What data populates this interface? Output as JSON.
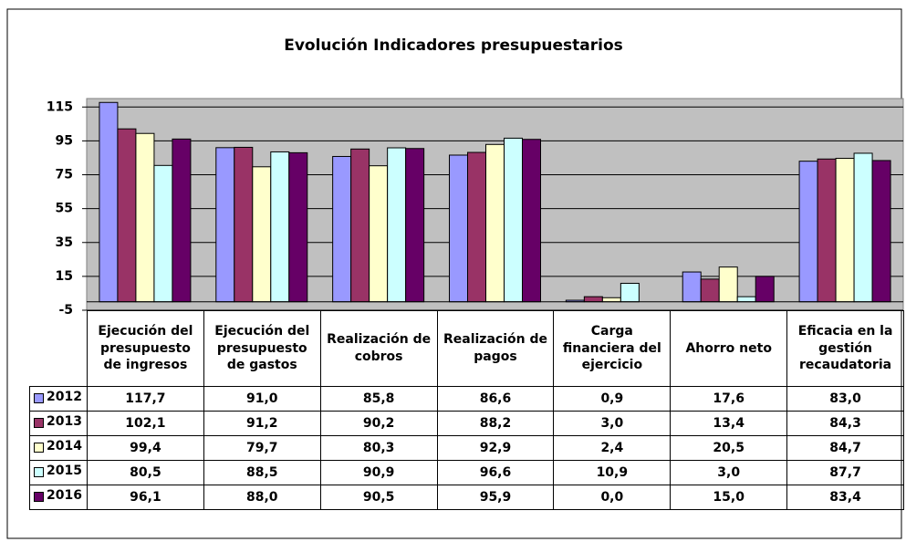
{
  "chart_data": {
    "type": "bar",
    "title": "Evolución Indicadores presupuestarios",
    "categories": [
      "Ejecución del presupuesto de ingresos",
      "Ejecución del presupuesto de gastos",
      "Realización de cobros",
      "Realización de pagos",
      "Carga financiera del ejercicio",
      "Ahorro neto",
      "Eficacia en la gestión recaudatoria"
    ],
    "series": [
      {
        "name": "2012",
        "color": "#9999ff",
        "values": [
          117.7,
          91.0,
          85.8,
          86.6,
          0.9,
          17.6,
          83.0
        ],
        "value_labels": [
          "117,7",
          "91,0",
          "85,8",
          "86,6",
          "0,9",
          "17,6",
          "83,0"
        ]
      },
      {
        "name": "2013",
        "color": "#993366",
        "values": [
          102.1,
          91.2,
          90.2,
          88.2,
          3.0,
          13.4,
          84.3
        ],
        "value_labels": [
          "102,1",
          "91,2",
          "90,2",
          "88,2",
          "3,0",
          "13,4",
          "84,3"
        ]
      },
      {
        "name": "2014",
        "color": "#ffffcc",
        "values": [
          99.4,
          79.7,
          80.3,
          92.9,
          2.4,
          20.5,
          84.7
        ],
        "value_labels": [
          "99,4",
          "79,7",
          "80,3",
          "92,9",
          "2,4",
          "20,5",
          "84,7"
        ]
      },
      {
        "name": "2015",
        "color": "#ccffff",
        "values": [
          80.5,
          88.5,
          90.9,
          96.6,
          10.9,
          3.0,
          87.7
        ],
        "value_labels": [
          "80,5",
          "88,5",
          "90,9",
          "96,6",
          "10,9",
          "3,0",
          "87,7"
        ]
      },
      {
        "name": "2016",
        "color": "#660066",
        "values": [
          96.1,
          88.0,
          90.5,
          95.9,
          0.0,
          15.0,
          83.4
        ],
        "value_labels": [
          "96,1",
          "88,0",
          "90,5",
          "95,9",
          "0,0",
          "15,0",
          "83,4"
        ]
      }
    ],
    "ylim": [
      -5,
      120
    ],
    "yticks": [
      -5,
      15,
      35,
      55,
      75,
      95,
      115
    ],
    "grid": true
  }
}
